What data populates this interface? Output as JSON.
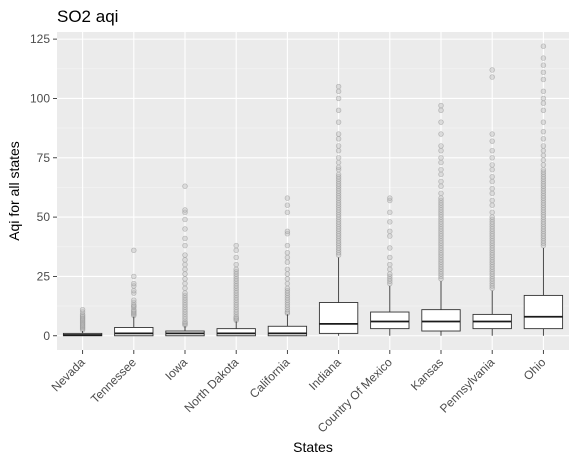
{
  "chart_data": {
    "type": "boxplot",
    "title": "SO2 aqi",
    "xlabel": "States",
    "ylabel": "Aqi for all states",
    "ylim": [
      -6,
      128
    ],
    "yticks": [
      0,
      25,
      50,
      75,
      100,
      125
    ],
    "grid": true,
    "categories": [
      "Nevada",
      "Tennessee",
      "Iowa",
      "North Dakota",
      "California",
      "Indiana",
      "Country Of Mexico",
      "Kansas",
      "Pennsylvania",
      "Ohio"
    ],
    "boxes": [
      {
        "min": 0,
        "q1": 0,
        "median": 0.3,
        "q3": 1,
        "max": 2,
        "outliers": [
          2.5,
          3,
          3.5,
          4,
          4.5,
          5,
          5.5,
          6,
          6.5,
          7,
          7.5,
          8,
          8.5,
          9,
          10,
          11
        ]
      },
      {
        "min": 0,
        "q1": 0,
        "median": 1,
        "q3": 3.5,
        "max": 8,
        "outliers": [
          8.5,
          9,
          9.5,
          10,
          10.5,
          11,
          12,
          12.5,
          13,
          14,
          15,
          18,
          19,
          21,
          22,
          25,
          36
        ]
      },
      {
        "min": 0,
        "q1": 0,
        "median": 1,
        "q3": 2,
        "max": 4,
        "outliers": [
          4.5,
          5,
          5.5,
          6,
          7,
          8,
          9,
          10,
          11,
          12,
          13,
          14,
          15,
          16,
          17,
          18,
          20,
          22,
          24,
          26,
          28,
          30,
          32,
          34,
          38,
          41,
          45,
          49,
          52,
          53,
          63
        ]
      },
      {
        "min": 0,
        "q1": 0,
        "median": 1,
        "q3": 3,
        "max": 6,
        "outliers": [
          6.5,
          7,
          7.5,
          8,
          9,
          10,
          11,
          12,
          13,
          14,
          15,
          16,
          17,
          18,
          19,
          20,
          21,
          22,
          23,
          24,
          25,
          26,
          27,
          28,
          30,
          33,
          36,
          38
        ]
      },
      {
        "min": 0,
        "q1": 0,
        "median": 1,
        "q3": 4,
        "max": 9,
        "outliers": [
          9.5,
          10,
          11,
          12,
          13,
          14,
          15,
          16,
          17,
          18,
          19,
          20,
          22,
          24,
          26,
          28,
          31,
          33,
          35,
          38,
          43,
          44,
          52,
          55,
          58
        ]
      },
      {
        "min": 0,
        "q1": 1,
        "median": 5,
        "q3": 14,
        "max": 33,
        "outliers": [
          34,
          35,
          36,
          37,
          38,
          39,
          40,
          41,
          42,
          43,
          44,
          45,
          46,
          47,
          48,
          49,
          50,
          51,
          52,
          53,
          54,
          55,
          56,
          57,
          58,
          59,
          60,
          61,
          62,
          63,
          64,
          65,
          66,
          67,
          68,
          70,
          71,
          73,
          75,
          78,
          80,
          83,
          85,
          90,
          95,
          100,
          103,
          105
        ]
      },
      {
        "min": 0,
        "q1": 3,
        "median": 6,
        "q3": 10,
        "max": 21,
        "outliers": [
          22,
          23,
          24,
          25,
          26,
          28,
          30,
          33,
          37,
          42,
          44,
          48,
          52,
          57,
          58
        ]
      },
      {
        "min": 0,
        "q1": 2,
        "median": 6,
        "q3": 11,
        "max": 23,
        "outliers": [
          24,
          25,
          26,
          27,
          28,
          29,
          30,
          31,
          32,
          33,
          34,
          35,
          36,
          37,
          38,
          39,
          40,
          41,
          42,
          43,
          44,
          45,
          46,
          47,
          48,
          49,
          50,
          51,
          52,
          53,
          54,
          55,
          56,
          57,
          58,
          60,
          63,
          65,
          68,
          70,
          73,
          75,
          78,
          80,
          85,
          90,
          95,
          97
        ]
      },
      {
        "min": 0,
        "q1": 3,
        "median": 6,
        "q3": 9,
        "max": 19,
        "outliers": [
          20,
          21,
          22,
          23,
          24,
          25,
          26,
          27,
          28,
          29,
          30,
          31,
          32,
          33,
          34,
          35,
          36,
          37,
          38,
          39,
          40,
          41,
          42,
          43,
          44,
          45,
          46,
          47,
          48,
          49,
          50,
          52,
          55,
          57,
          60,
          62,
          65,
          67,
          70,
          72,
          75,
          78,
          82,
          85,
          109,
          112
        ]
      },
      {
        "min": 0,
        "q1": 3,
        "median": 8,
        "q3": 17,
        "max": 37,
        "outliers": [
          38,
          39,
          40,
          41,
          42,
          43,
          44,
          45,
          46,
          47,
          48,
          49,
          50,
          51,
          52,
          53,
          54,
          55,
          56,
          57,
          58,
          59,
          60,
          61,
          62,
          63,
          64,
          65,
          66,
          67,
          68,
          69,
          70,
          72,
          74,
          76,
          78,
          80,
          83,
          86,
          90,
          95,
          98,
          100,
          103,
          108,
          111,
          114,
          117,
          122
        ]
      }
    ]
  }
}
